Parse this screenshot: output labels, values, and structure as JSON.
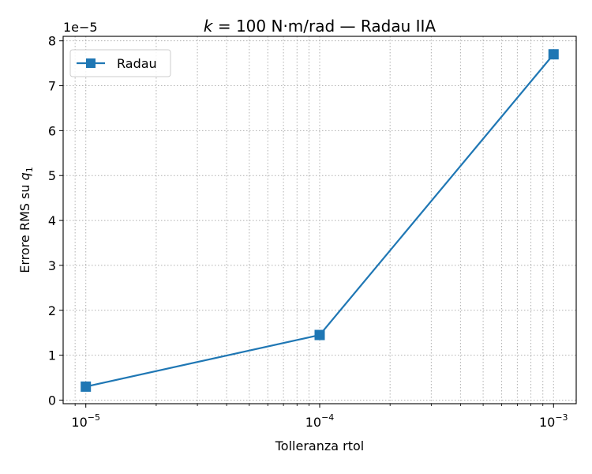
{
  "chart_data": {
    "type": "line",
    "title_prefix": "k",
    "title_rest": " = 100 N·m/rad — Radau IIA",
    "xlabel": "Tolleranza rtol",
    "ylabel_text": "Errore RMS su ",
    "ylabel_var": "q",
    "ylabel_sub": "1",
    "y_offset_label": "1e−5",
    "x_scale": "log",
    "y_scale": "linear",
    "xlim": [
      8e-06,
      0.00125
    ],
    "ylim": [
      -8e-07,
      8.1e-05
    ],
    "x_ticks": [
      {
        "value": 1e-05,
        "base": "10",
        "exp": "−5"
      },
      {
        "value": 0.0001,
        "base": "10",
        "exp": "−4"
      },
      {
        "value": 0.001,
        "base": "10",
        "exp": "−3"
      }
    ],
    "y_ticks": [
      {
        "value": 0,
        "label": "0"
      },
      {
        "value": 1e-05,
        "label": "1"
      },
      {
        "value": 2e-05,
        "label": "2"
      },
      {
        "value": 3e-05,
        "label": "3"
      },
      {
        "value": 4e-05,
        "label": "4"
      },
      {
        "value": 5e-05,
        "label": "5"
      },
      {
        "value": 6e-05,
        "label": "6"
      },
      {
        "value": 7e-05,
        "label": "7"
      },
      {
        "value": 8e-05,
        "label": "8"
      }
    ],
    "grid": true,
    "grid_style": "dotted",
    "legend_position": "top-left",
    "series": [
      {
        "name": "Radau",
        "color": "#1f77b4",
        "marker": "square",
        "x": [
          1e-05,
          0.0001,
          0.001
        ],
        "y": [
          3e-06,
          1.45e-05,
          7.7e-05
        ]
      }
    ]
  }
}
